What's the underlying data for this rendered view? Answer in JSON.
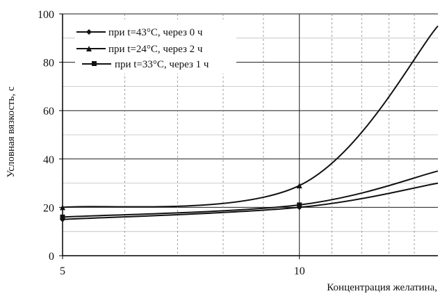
{
  "chart_data": {
    "type": "line",
    "xlabel": "Концентрация желатина,",
    "ylabel": "Условная вязкость, с",
    "xscale": "log",
    "xlim": [
      5,
      15
    ],
    "ylim": [
      0,
      100
    ],
    "x_ticks": [
      5,
      10
    ],
    "y_ticks": [
      0,
      20,
      40,
      60,
      80,
      100
    ],
    "grid": true,
    "legend_position": "top-left",
    "series": [
      {
        "name": "при t=43°C, через 0  ч",
        "marker": "diamond",
        "color": "#111111",
        "x": [
          5,
          10,
          15
        ],
        "y": [
          15,
          20,
          30
        ]
      },
      {
        "name": "при t=24°C, через 2  ч",
        "marker": "triangle",
        "color": "#111111",
        "x": [
          5,
          10,
          15
        ],
        "y": [
          20,
          29,
          95
        ]
      },
      {
        "name": "при t=33°C, через 1  ч",
        "marker": "square",
        "color": "#111111",
        "x": [
          5,
          10,
          15
        ],
        "y": [
          16,
          21,
          35
        ]
      }
    ]
  }
}
